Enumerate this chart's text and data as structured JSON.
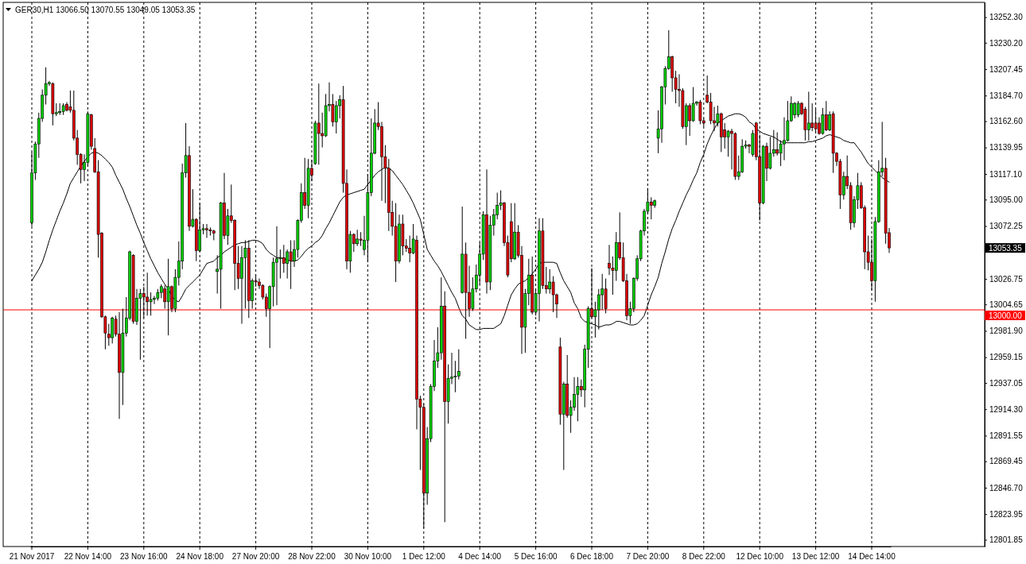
{
  "chart_data": {
    "type": "candlestick",
    "title": "GER30,H1 13066.50 13070.55 13049.05 13053.35",
    "categories": [
      "21 Nov 2017",
      null,
      null,
      null,
      null,
      null,
      null,
      null,
      null,
      null,
      null,
      null,
      null,
      null,
      null,
      null,
      "22 Nov 14:00",
      null,
      null,
      null,
      null,
      null,
      null,
      null,
      null,
      null,
      null,
      null,
      null,
      null,
      null,
      null,
      "23 Nov 16:00",
      null,
      null,
      null,
      null,
      null,
      null,
      null,
      null,
      null,
      null,
      null,
      null,
      null,
      null,
      null,
      "24 Nov 18:00",
      null,
      null,
      null,
      null,
      null,
      null,
      null,
      null,
      null,
      null,
      null,
      null,
      null,
      null,
      null,
      "27 Nov 20:00",
      null,
      null,
      null,
      null,
      null,
      null,
      null,
      null,
      null,
      null,
      null,
      null,
      null,
      null,
      null,
      "28 Nov 22:00",
      null,
      null,
      null,
      null,
      null,
      null,
      null,
      null,
      null,
      null,
      null,
      null,
      null,
      null,
      null,
      "30 Nov 10:00",
      null,
      null,
      null,
      null,
      null,
      null,
      null,
      null,
      null,
      null,
      null,
      null,
      null,
      null,
      null,
      "1 Dec 12:00",
      null,
      null,
      null,
      null,
      null,
      null,
      null,
      null,
      null,
      null,
      null,
      null,
      null,
      null,
      null,
      "4 Dec 14:00",
      null,
      null,
      null,
      null,
      null,
      null,
      null,
      null,
      null,
      null,
      null,
      null,
      null,
      null,
      null,
      "5 Dec 16:00",
      null,
      null,
      null,
      null,
      null,
      null,
      null,
      null,
      null,
      null,
      null,
      null,
      null,
      null,
      null,
      "6 Dec 18:00",
      null,
      null,
      null,
      null,
      null,
      null,
      null,
      null,
      null,
      null,
      null,
      null,
      null,
      null,
      null,
      "7 Dec 20:00",
      null,
      null,
      null,
      null,
      null,
      null,
      null,
      null,
      null,
      null,
      null,
      null,
      null,
      null,
      null,
      "8 Dec 22:00",
      null,
      null,
      null,
      null,
      null,
      null,
      null,
      null,
      null,
      null,
      null,
      null,
      null,
      null,
      null,
      "12 Dec 10:00",
      null,
      null,
      null,
      null,
      null,
      null,
      null,
      null,
      null,
      null,
      null,
      null,
      null,
      null,
      null,
      "13 Dec 12:00",
      null,
      null,
      null,
      null,
      null,
      null,
      null,
      null,
      null,
      null,
      null,
      null,
      null,
      null,
      null,
      "14 Dec 14:00",
      null,
      null,
      null,
      null,
      null
    ],
    "ohlc": [
      [
        13075,
        13136,
        13072,
        13118
      ],
      [
        13118,
        13145,
        13112,
        13143
      ],
      [
        13143,
        13170,
        13131,
        13165
      ],
      [
        13165,
        13190,
        13162,
        13185
      ],
      [
        13185,
        13209,
        13177,
        13195
      ],
      [
        13195,
        13197,
        13193,
        13196
      ],
      [
        13195,
        13196,
        13159,
        13169
      ],
      [
        13169,
        13178,
        13167,
        13170
      ],
      [
        13170,
        13178,
        13168,
        13171
      ],
      [
        13171,
        13178,
        13168,
        13176
      ],
      [
        13177,
        13179,
        13171,
        13172
      ],
      [
        13175,
        13189,
        13170,
        13172
      ],
      [
        13172,
        13189,
        13146,
        13148
      ],
      [
        13148,
        13155,
        13125,
        13134
      ],
      [
        13134,
        13135,
        13109,
        13121
      ],
      [
        13121,
        13134,
        13111,
        13127
      ],
      [
        13127,
        13171,
        13124,
        13169
      ],
      [
        13168,
        13169,
        13138,
        13141
      ],
      [
        13139,
        13148,
        13118,
        13119
      ],
      [
        13119,
        13129,
        13045,
        13065
      ],
      [
        13066,
        13067,
        12993,
        12994
      ],
      [
        12994,
        12995,
        12966,
        12980
      ],
      [
        12979,
        12988,
        12969,
        12976
      ],
      [
        12976,
        12994,
        12971,
        12993
      ],
      [
        12992,
        12995,
        12977,
        12979
      ],
      [
        12979,
        12998,
        12906,
        12946
      ],
      [
        12946,
        13001,
        12918,
        12980
      ],
      [
        12980,
        13011,
        12977,
        12993
      ],
      [
        12993,
        13051,
        12991,
        13050
      ],
      [
        13047,
        13048,
        12988,
        12990
      ],
      [
        12990,
        13018,
        12987,
        13010
      ],
      [
        13010,
        13018,
        12957,
        13014
      ],
      [
        13014,
        13020,
        12993,
        13011
      ],
      [
        13011,
        13032,
        12995,
        13007
      ],
      [
        13007,
        13015,
        12995,
        13009
      ],
      [
        13009,
        13012,
        13005,
        13010
      ],
      [
        13010,
        13018,
        13008,
        13015
      ],
      [
        13015,
        13022,
        13010,
        13020
      ],
      [
        13018,
        13021,
        13001,
        13007
      ],
      [
        13007,
        13044,
        12978,
        13020
      ],
      [
        13020,
        13021,
        12998,
        13001
      ],
      [
        13001,
        13035,
        12998,
        13028
      ],
      [
        13028,
        13059,
        13021,
        13042
      ],
      [
        13042,
        13126,
        13035,
        13118
      ],
      [
        13118,
        13161,
        13114,
        13133
      ],
      [
        13133,
        13141,
        13068,
        13072
      ],
      [
        13072,
        13104,
        13071,
        13078
      ],
      [
        13078,
        13079,
        13042,
        13051
      ],
      [
        13051,
        13092,
        13050,
        13069
      ],
      [
        13069,
        13074,
        13065,
        13070
      ],
      [
        13070,
        13074,
        13062,
        13069
      ],
      [
        13069,
        13071,
        13064,
        13068
      ],
      [
        13068,
        13069,
        13060,
        13066
      ],
      [
        13033,
        13047,
        13014,
        13035
      ],
      [
        13035,
        13093,
        13001,
        13092
      ],
      [
        13092,
        13118,
        13061,
        13064
      ],
      [
        13064,
        13087,
        13056,
        13081
      ],
      [
        13081,
        13108,
        13075,
        13077
      ],
      [
        13077,
        13078,
        13017,
        13040
      ],
      [
        13040,
        13055,
        13018,
        13027
      ],
      [
        13027,
        13055,
        12988,
        13045
      ],
      [
        13045,
        13060,
        13001,
        13053
      ],
      [
        13053,
        13060,
        12993,
        13008
      ],
      [
        13008,
        13027,
        13001,
        13025
      ],
      [
        13025,
        13030,
        13020,
        13024
      ],
      [
        13024,
        13027,
        13018,
        13021
      ],
      [
        13021,
        13022,
        13009,
        13011
      ],
      [
        13011,
        13014,
        12994,
        13001
      ],
      [
        13001,
        13021,
        12967,
        13020
      ],
      [
        13020,
        13045,
        13003,
        13041
      ],
      [
        13041,
        13072,
        13004,
        13044
      ],
      [
        13044,
        13052,
        13027,
        13045
      ],
      [
        13045,
        13056,
        13032,
        13040
      ],
      [
        13040,
        13052,
        13027,
        13050
      ],
      [
        13050,
        13060,
        13018,
        13042
      ],
      [
        13042,
        13060,
        13037,
        13052
      ],
      [
        13052,
        13078,
        13045,
        13077
      ],
      [
        13077,
        13109,
        13075,
        13101
      ],
      [
        13101,
        13131,
        13087,
        13090
      ],
      [
        13090,
        13130,
        13079,
        13122
      ],
      [
        13122,
        13129,
        13111,
        13116
      ],
      [
        13126,
        13163,
        13125,
        13161
      ],
      [
        13161,
        13195,
        13125,
        13152
      ],
      [
        13152,
        13170,
        13140,
        13150
      ],
      [
        13150,
        13186,
        13149,
        13176
      ],
      [
        13176,
        13196,
        13171,
        13177
      ],
      [
        13177,
        13186,
        13158,
        13162
      ],
      [
        13162,
        13180,
        13152,
        13176
      ],
      [
        13176,
        13185,
        13165,
        13181
      ],
      [
        13181,
        13193,
        13101,
        13109
      ],
      [
        13109,
        13121,
        13035,
        13042
      ],
      [
        13042,
        13068,
        13032,
        13065
      ],
      [
        13065,
        13066,
        13050,
        13057
      ],
      [
        13057,
        13069,
        13055,
        13061
      ],
      [
        13061,
        13067,
        13055,
        13060
      ],
      [
        13052,
        13081,
        13047,
        13060
      ],
      [
        13060,
        13117,
        13041,
        13101
      ],
      [
        13101,
        13165,
        13098,
        13135
      ],
      [
        13135,
        13173,
        13134,
        13161
      ],
      [
        13161,
        13179,
        13155,
        13158
      ],
      [
        13158,
        13162,
        13094,
        13132
      ],
      [
        13132,
        13142,
        13092,
        13122
      ],
      [
        13122,
        13130,
        13068,
        13084
      ],
      [
        13084,
        13094,
        13064,
        13072
      ],
      [
        13072,
        13092,
        13024,
        13042
      ],
      [
        13042,
        13082,
        13040,
        13074
      ],
      [
        13074,
        13082,
        13047,
        13055
      ],
      [
        13055,
        13061,
        13050,
        13053
      ],
      [
        13053,
        13064,
        13041,
        13049
      ],
      [
        13049,
        13074,
        13048,
        13061
      ],
      [
        13060,
        13064,
        12897,
        12923
      ],
      [
        12923,
        12926,
        12862,
        12916
      ],
      [
        12916,
        12919,
        12812,
        12842
      ],
      [
        12842,
        12899,
        12832,
        12889
      ],
      [
        12889,
        12936,
        12886,
        12934
      ],
      [
        12934,
        12974,
        12930,
        12956
      ],
      [
        12956,
        12985,
        12950,
        12963
      ],
      [
        12963,
        13028,
        12957,
        13003
      ],
      [
        13003,
        13016,
        12817,
        12921
      ],
      [
        12921,
        12953,
        12902,
        12941
      ],
      [
        12941,
        12963,
        12936,
        12942
      ],
      [
        12942,
        12956,
        12929,
        12943
      ],
      [
        12943,
        12966,
        12940,
        12947
      ],
      [
        13015,
        13089,
        13014,
        13048
      ],
      [
        13048,
        13058,
        12975,
        13015
      ],
      [
        13015,
        13038,
        12994,
        13001
      ],
      [
        13001,
        13028,
        12999,
        13018
      ],
      [
        13018,
        13039,
        13015,
        13030
      ],
      [
        13030,
        13058,
        13022,
        13048
      ],
      [
        13048,
        13085,
        13043,
        13082
      ],
      [
        13082,
        13121,
        13014,
        13024
      ],
      [
        13024,
        13081,
        13017,
        13073
      ],
      [
        13073,
        13087,
        13064,
        13082
      ],
      [
        13082,
        13101,
        13078,
        13090
      ],
      [
        13090,
        13103,
        13086,
        13092
      ],
      [
        13092,
        13093,
        13055,
        13058
      ],
      [
        13058,
        13064,
        13028,
        13030
      ],
      [
        13076,
        13092,
        13041,
        13044
      ],
      [
        13044,
        13092,
        13043,
        13067
      ],
      [
        13067,
        13073,
        13045,
        13047
      ],
      [
        13047,
        13055,
        12962,
        12985
      ],
      [
        12985,
        13018,
        12963,
        13014
      ],
      [
        13014,
        13044,
        13004,
        13030
      ],
      [
        13030,
        13046,
        12996,
        12998
      ],
      [
        12998,
        13018,
        12995,
        13014
      ],
      [
        13014,
        13079,
        12990,
        13068
      ],
      [
        13068,
        13079,
        13018,
        13021
      ],
      [
        13021,
        13037,
        13014,
        13018
      ],
      [
        13018,
        13035,
        13014,
        13024
      ],
      [
        13024,
        13029,
        12998,
        13013
      ],
      [
        13013,
        13014,
        12993,
        13005
      ],
      [
        12968,
        12976,
        12901,
        12910
      ],
      [
        12910,
        12938,
        12862,
        12936
      ],
      [
        12936,
        12961,
        12907,
        12909
      ],
      [
        12909,
        12922,
        12894,
        12916
      ],
      [
        12916,
        12942,
        12913,
        12927
      ],
      [
        12927,
        12942,
        12904,
        12934
      ],
      [
        12934,
        12940,
        12925,
        12931
      ],
      [
        12931,
        12970,
        12916,
        12966
      ],
      [
        12966,
        13003,
        12950,
        13001
      ],
      [
        13001,
        13036,
        12993,
        12994
      ],
      [
        12994,
        13007,
        12976,
        13000
      ],
      [
        13000,
        13018,
        12983,
        13013
      ],
      [
        13013,
        13031,
        13000,
        13018
      ],
      [
        13018,
        13027,
        12997,
        13001
      ],
      [
        13040,
        13056,
        13030,
        13036
      ],
      [
        13036,
        13046,
        13013,
        13034
      ],
      [
        13034,
        13067,
        13025,
        13058
      ],
      [
        13058,
        13084,
        13043,
        13045
      ],
      [
        13045,
        13058,
        13024,
        13025
      ],
      [
        13025,
        13031,
        12991,
        12995
      ],
      [
        12995,
        13007,
        12988,
        13001
      ],
      [
        13001,
        13028,
        12998,
        13027
      ],
      [
        13027,
        13047,
        13025,
        13044
      ],
      [
        13044,
        13069,
        13042,
        13068
      ],
      [
        13068,
        13087,
        13064,
        13085
      ],
      [
        13085,
        13105,
        13083,
        13093
      ],
      [
        13093,
        13097,
        13078,
        13090
      ],
      [
        13090,
        13095,
        13088,
        13094
      ],
      [
        13148,
        13172,
        13135,
        13156
      ],
      [
        13156,
        13193,
        13144,
        13192
      ],
      [
        13192,
        13210,
        13177,
        13208
      ],
      [
        13208,
        13241,
        13207,
        13218
      ],
      [
        13218,
        13219,
        13188,
        13200
      ],
      [
        13200,
        13206,
        13178,
        13190
      ],
      [
        13190,
        13203,
        13175,
        13189
      ],
      [
        13189,
        13191,
        13156,
        13158
      ],
      [
        13158,
        13178,
        13142,
        13176
      ],
      [
        13176,
        13178,
        13150,
        13163
      ],
      [
        13163,
        13192,
        13162,
        13178
      ],
      [
        13178,
        13180,
        13176,
        13179
      ],
      [
        13179,
        13181,
        13160,
        13163
      ],
      [
        13163,
        13165,
        13158,
        13161
      ],
      [
        13185,
        13202,
        13178,
        13179
      ],
      [
        13179,
        13187,
        13160,
        13163
      ],
      [
        13163,
        13175,
        13154,
        13161
      ],
      [
        13161,
        13176,
        13158,
        13169
      ],
      [
        13169,
        13170,
        13136,
        13149
      ],
      [
        13155,
        13161,
        13139,
        13149
      ],
      [
        13149,
        13155,
        13132,
        13154
      ],
      [
        13154,
        13156,
        13121,
        13152
      ],
      [
        13152,
        13153,
        13112,
        13115
      ],
      [
        13115,
        13133,
        13112,
        13119
      ],
      [
        13119,
        13147,
        13118,
        13141
      ],
      [
        13141,
        13146,
        13139,
        13142
      ],
      [
        13142,
        13143,
        13135,
        13141
      ],
      [
        13134,
        13155,
        13132,
        13152
      ],
      [
        13161,
        13162,
        13129,
        13132
      ],
      [
        13132,
        13151,
        13077,
        13092
      ],
      [
        13092,
        13142,
        13091,
        13141
      ],
      [
        13141,
        13144,
        13111,
        13122
      ],
      [
        13122,
        13149,
        13121,
        13135
      ],
      [
        13135,
        13155,
        13132,
        13138
      ],
      [
        13138,
        13153,
        13133,
        13135
      ],
      [
        13135,
        13146,
        13124,
        13143
      ],
      [
        13143,
        13166,
        13129,
        13146
      ],
      [
        13146,
        13180,
        13145,
        13163
      ],
      [
        13163,
        13184,
        13162,
        13178
      ],
      [
        13168,
        13179,
        13165,
        13178
      ],
      [
        13168,
        13180,
        13166,
        13178
      ],
      [
        13178,
        13179,
        13168,
        13169
      ],
      [
        13173,
        13175,
        13146,
        13155
      ],
      [
        13155,
        13188,
        13146,
        13161
      ],
      [
        13161,
        13178,
        13154,
        13157
      ],
      [
        13161,
        13173,
        13152,
        13156
      ],
      [
        13161,
        13166,
        13151,
        13152
      ],
      [
        13152,
        13174,
        13151,
        13168
      ],
      [
        13168,
        13180,
        13154,
        13155
      ],
      [
        13155,
        13171,
        13154,
        13168
      ],
      [
        13169,
        13171,
        13118,
        13135
      ],
      [
        13135,
        13136,
        13124,
        13128
      ],
      [
        13128,
        13130,
        13087,
        13099
      ],
      [
        13099,
        13119,
        13095,
        13115
      ],
      [
        13115,
        13133,
        13104,
        13107
      ],
      [
        13107,
        13110,
        13069,
        13075
      ],
      [
        13075,
        13098,
        13071,
        13095
      ],
      [
        13095,
        13118,
        13087,
        13107
      ],
      [
        13107,
        13110,
        13087,
        13088
      ],
      [
        13088,
        13090,
        13035,
        13050
      ],
      [
        13050,
        13064,
        13034,
        13041
      ],
      [
        13041,
        13061,
        13017,
        13025
      ],
      [
        13025,
        13080,
        13007,
        13076
      ],
      [
        13076,
        13129,
        13075,
        13119
      ],
      [
        13119,
        13162,
        13115,
        13122
      ],
      [
        13122,
        13131,
        13057,
        13066
      ],
      [
        13066.5,
        13070.55,
        13049.05,
        13053.35
      ]
    ],
    "colors": [
      "#00cc00",
      "#00cc00",
      "#00cc00",
      "#00cc00",
      "#00cc00",
      "#00cc00",
      "#dd0000",
      "#00cc00",
      "#00cc00",
      "#00cc00",
      "#dd0000",
      "#dd0000",
      "#dd0000",
      "#dd0000",
      "#dd0000",
      "#00cc00",
      "#00cc00",
      "#dd0000",
      "#dd0000",
      "#dd0000",
      "#dd0000",
      "#dd0000",
      "#dd0000",
      "#00cc00",
      "#dd0000",
      "#dd0000",
      "#00cc00",
      "#00cc00",
      "#00cc00",
      "#dd0000",
      "#00cc00",
      "#00cc00",
      "#dd0000",
      "#dd0000",
      "#00cc00",
      "#00cc00",
      "#00cc00",
      "#00cc00",
      "#dd0000",
      "#00cc00",
      "#dd0000",
      "#00cc00",
      "#00cc00",
      "#00cc00",
      "#00cc00",
      "#dd0000",
      "#00cc00",
      "#dd0000",
      "#00cc00",
      "#00cc00",
      "#dd0000",
      "#dd0000",
      "#dd0000",
      "#00cc00",
      "#00cc00",
      "#dd0000",
      "#00cc00",
      "#dd0000",
      "#dd0000",
      "#dd0000",
      "#00cc00",
      "#00cc00",
      "#dd0000",
      "#00cc00",
      "#dd0000",
      "#dd0000",
      "#dd0000",
      "#dd0000",
      "#00cc00",
      "#00cc00",
      "#00cc00",
      "#00cc00",
      "#dd0000",
      "#00cc00",
      "#dd0000",
      "#00cc00",
      "#00cc00",
      "#00cc00",
      "#dd0000",
      "#00cc00",
      "#dd0000",
      "#00cc00",
      "#dd0000",
      "#dd0000",
      "#00cc00",
      "#00cc00",
      "#dd0000",
      "#00cc00",
      "#00cc00",
      "#dd0000",
      "#dd0000",
      "#00cc00",
      "#dd0000",
      "#00cc00",
      "#dd0000",
      "#00cc00",
      "#00cc00",
      "#00cc00",
      "#00cc00",
      "#dd0000",
      "#dd0000",
      "#dd0000",
      "#dd0000",
      "#dd0000",
      "#dd0000",
      "#00cc00",
      "#dd0000",
      "#dd0000",
      "#dd0000",
      "#00cc00",
      "#dd0000",
      "#dd0000",
      "#dd0000",
      "#00cc00",
      "#00cc00",
      "#00cc00",
      "#00cc00",
      "#00cc00",
      "#dd0000",
      "#00cc00",
      "#00cc00",
      "#00cc00",
      "#00cc00",
      "#00cc00",
      "#dd0000",
      "#dd0000",
      "#00cc00",
      "#00cc00",
      "#00cc00",
      "#00cc00",
      "#dd0000",
      "#00cc00",
      "#00cc00",
      "#00cc00",
      "#00cc00",
      "#dd0000",
      "#dd0000",
      "#dd0000",
      "#00cc00",
      "#dd0000",
      "#dd0000",
      "#00cc00",
      "#00cc00",
      "#dd0000",
      "#00cc00",
      "#00cc00",
      "#dd0000",
      "#dd0000",
      "#00cc00",
      "#dd0000",
      "#dd0000",
      "#dd0000",
      "#00cc00",
      "#dd0000",
      "#00cc00",
      "#00cc00",
      "#00cc00",
      "#dd0000",
      "#00cc00",
      "#00cc00",
      "#dd0000",
      "#00cc00",
      "#00cc00",
      "#00cc00",
      "#dd0000",
      "#dd0000",
      "#dd0000",
      "#00cc00",
      "#dd0000",
      "#dd0000",
      "#dd0000",
      "#00cc00",
      "#00cc00",
      "#00cc00",
      "#00cc00",
      "#00cc00",
      "#00cc00",
      "#dd0000",
      "#00cc00",
      "#00cc00",
      "#00cc00",
      "#00cc00",
      "#00cc00",
      "#dd0000",
      "#dd0000",
      "#dd0000",
      "#dd0000",
      "#00cc00",
      "#dd0000",
      "#00cc00",
      "#00cc00",
      "#dd0000",
      "#dd0000",
      "#dd0000",
      "#dd0000",
      "#dd0000",
      "#00cc00",
      "#dd0000",
      "#dd0000",
      "#00cc00",
      "#dd0000",
      "#dd0000",
      "#00cc00",
      "#00cc00",
      "#00cc00",
      "#dd0000",
      "#00cc00",
      "#dd0000",
      "#dd0000",
      "#00cc00",
      "#dd0000",
      "#00cc00",
      "#00cc00",
      "#dd0000",
      "#00cc00",
      "#00cc00",
      "#00cc00",
      "#00cc00",
      "#00cc00",
      "#00cc00",
      "#dd0000",
      "#dd0000",
      "#00cc00",
      "#dd0000",
      "#dd0000",
      "#dd0000",
      "#00cc00",
      "#dd0000",
      "#00cc00",
      "#dd0000",
      "#dd0000",
      "#dd0000",
      "#00cc00",
      "#dd0000",
      "#dd0000",
      "#00cc00",
      "#00cc00",
      "#dd0000",
      "#dd0000",
      "#dd0000",
      "#dd0000",
      "#00cc00",
      "#00cc00",
      "#00cc00",
      "#dd0000",
      "#dd0000"
    ],
    "series": [
      {
        "type": "line",
        "color": "#000000",
        "values": [
          13025,
          13030,
          13035,
          13041,
          13050,
          13060,
          13069,
          13077,
          13085,
          13092,
          13100,
          13109,
          13114,
          13119,
          13124,
          13128,
          13132,
          13135,
          13136,
          13135,
          13133,
          13130,
          13127,
          13123,
          13116,
          13110,
          13104,
          13096,
          13089,
          13081,
          13073,
          13066,
          13058,
          13051,
          13044,
          13038,
          13032,
          13027,
          13022,
          13018,
          13012,
          13008,
          13007,
          13012,
          13018,
          13021,
          13024,
          13027,
          13030,
          13035,
          13040,
          13041,
          13042,
          13045,
          13047,
          13050,
          13052,
          13054,
          13056,
          13057,
          13058,
          13058,
          13059,
          13060,
          13060,
          13059,
          13057,
          13052,
          13049,
          13047,
          13045,
          13045,
          13044,
          13043,
          13042,
          13042,
          13043,
          13046,
          13050,
          13053,
          13055,
          13058,
          13060,
          13064,
          13070,
          13075,
          13081,
          13087,
          13093,
          13097,
          13099,
          13100,
          13101,
          13102,
          13103,
          13104,
          13108,
          13112,
          13116,
          13119,
          13121,
          13123,
          13122,
          13120,
          13116,
          13112,
          13108,
          13103,
          13098,
          13092,
          13085,
          13078,
          13065,
          13052,
          13047,
          13042,
          13038,
          13033,
          13027,
          13021,
          13015,
          13010,
          13002,
          12995,
          12992,
          12987,
          12985,
          12983,
          12983,
          12984,
          12984,
          12984,
          12984,
          12986,
          12988,
          12995,
          13004,
          13013,
          13018,
          13022,
          13024,
          13025,
          13028,
          13031,
          13035,
          13040,
          13041,
          13041,
          13041,
          13041,
          13040,
          13032,
          13025,
          13020,
          13015,
          13006,
          13001,
          12993,
          12990,
          12989,
          12988,
          12987,
          12985,
          12986,
          12987,
          12987,
          12988,
          12990,
          12990,
          12989,
          12988,
          12987,
          12987,
          12988,
          12991,
          12995,
          13004,
          13013,
          13020,
          13028,
          13040,
          13050,
          13061,
          13070,
          13077,
          13085,
          13092,
          13099,
          13105,
          13112,
          13118,
          13127,
          13134,
          13143,
          13150,
          13156,
          13161,
          13163,
          13165,
          13167,
          13168,
          13169,
          13169,
          13168,
          13166,
          13162,
          13160,
          13156,
          13154,
          13152,
          13151,
          13150,
          13149,
          13147,
          13145,
          13144,
          13144,
          13144,
          13144,
          13144,
          13144,
          13144,
          13145,
          13145,
          13146,
          13147,
          13148,
          13150,
          13151,
          13150,
          13149,
          13148,
          13146,
          13145,
          13144,
          13144,
          13140,
          13136,
          13131,
          13126,
          13123,
          13120,
          13117,
          13114,
          13112,
          13110
        ]
      }
    ],
    "ylim": [
      12796,
      13265
    ],
    "yticks": [
      {
        "value": 12801.85,
        "label": "12801.85"
      },
      {
        "value": 12823.95,
        "label": "12823.95"
      },
      {
        "value": 12846.7,
        "label": "12846.70"
      },
      {
        "value": 12869.45,
        "label": "12869.45"
      },
      {
        "value": 12891.55,
        "label": "12891.55"
      },
      {
        "value": 12914.3,
        "label": "12914.30"
      },
      {
        "value": 12937.05,
        "label": "12937.05"
      },
      {
        "value": 12959.15,
        "label": "12959.15"
      },
      {
        "value": 12981.9,
        "label": "12981.90"
      },
      {
        "value": 13004.65,
        "label": "13004.65"
      },
      {
        "value": 13026.75,
        "label": "13026.75"
      },
      {
        "value": 13072.25,
        "label": "13072.25"
      },
      {
        "value": 13095,
        "label": "13095.00"
      },
      {
        "value": 13117.1,
        "label": "13117.10"
      },
      {
        "value": 13139.95,
        "label": "13139.95"
      },
      {
        "value": 13162.6,
        "label": "13162.60"
      },
      {
        "value": 13184.7,
        "label": "13184.70"
      },
      {
        "value": 13207.45,
        "label": "13207.45"
      },
      {
        "value": 13230.2,
        "label": "13230.20"
      },
      {
        "value": 13252.3,
        "label": "13252.30"
      }
    ],
    "grid": "x",
    "ref_lines": [
      {
        "axis": "y",
        "value": 13000,
        "label": "13000.00",
        "color": "#ff0000"
      }
    ],
    "annotations": [
      "13053.35"
    ]
  }
}
